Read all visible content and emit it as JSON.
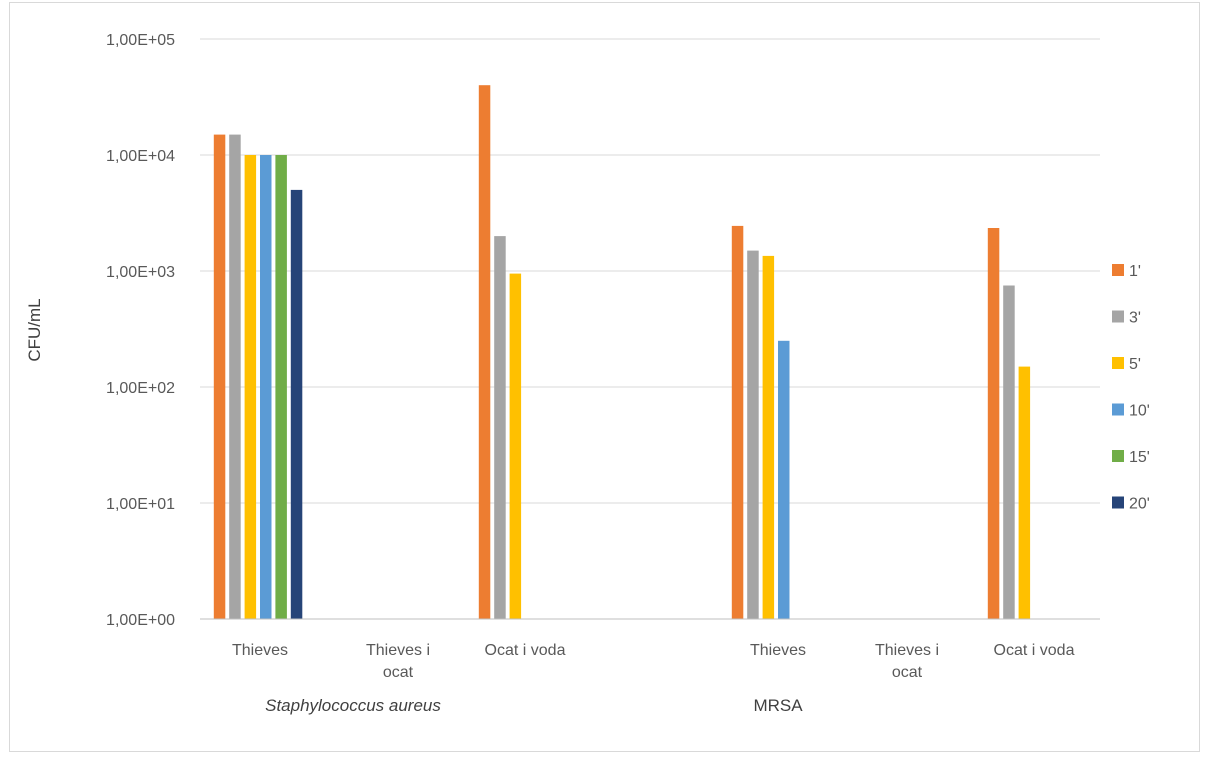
{
  "chart_data": {
    "type": "bar",
    "title": "",
    "ylabel": "CFU/mL",
    "xlabel": "",
    "y_scale": "log",
    "ylim": [
      1,
      100000
    ],
    "y_ticks": [
      {
        "value": 1,
        "label": "1,00E+00"
      },
      {
        "value": 10,
        "label": "1,00E+01"
      },
      {
        "value": 100,
        "label": "1,00E+02"
      },
      {
        "value": 1000,
        "label": "1,00E+03"
      },
      {
        "value": 10000,
        "label": "1,00E+04"
      },
      {
        "value": 100000,
        "label": "1,00E+05"
      }
    ],
    "grid": true,
    "legend_position": "right",
    "groups": [
      {
        "name": "Staphylococcus aureus",
        "italic": true,
        "categories": [
          "Thieves",
          "Thieves i ocat",
          "Ocat i voda"
        ]
      },
      {
        "name": "MRSA",
        "italic": false,
        "categories": [
          "Thieves",
          "Thieves i ocat",
          "Ocat i voda"
        ]
      }
    ],
    "category_lines": [
      [
        "Thieves"
      ],
      [
        "Thieves i",
        "ocat"
      ],
      [
        "Ocat i voda"
      ],
      [
        "Thieves"
      ],
      [
        "Thieves i",
        "ocat"
      ],
      [
        "Ocat i voda"
      ]
    ],
    "series": [
      {
        "name": "1'",
        "color": "#ED7D31",
        "values": [
          15000,
          null,
          40000,
          2450,
          null,
          2350
        ]
      },
      {
        "name": "3'",
        "color": "#A5A5A5",
        "values": [
          15000,
          null,
          2000,
          1500,
          null,
          750
        ]
      },
      {
        "name": "5'",
        "color": "#FFC000",
        "values": [
          10000,
          null,
          950,
          1350,
          null,
          150
        ]
      },
      {
        "name": "10'",
        "color": "#5B9BD5",
        "values": [
          10000,
          null,
          null,
          250,
          null,
          null
        ]
      },
      {
        "name": "15'",
        "color": "#70AD47",
        "values": [
          10000,
          null,
          null,
          null,
          null,
          null
        ]
      },
      {
        "name": "20'",
        "color": "#264478",
        "values": [
          5000,
          null,
          null,
          null,
          null,
          null
        ]
      }
    ]
  }
}
